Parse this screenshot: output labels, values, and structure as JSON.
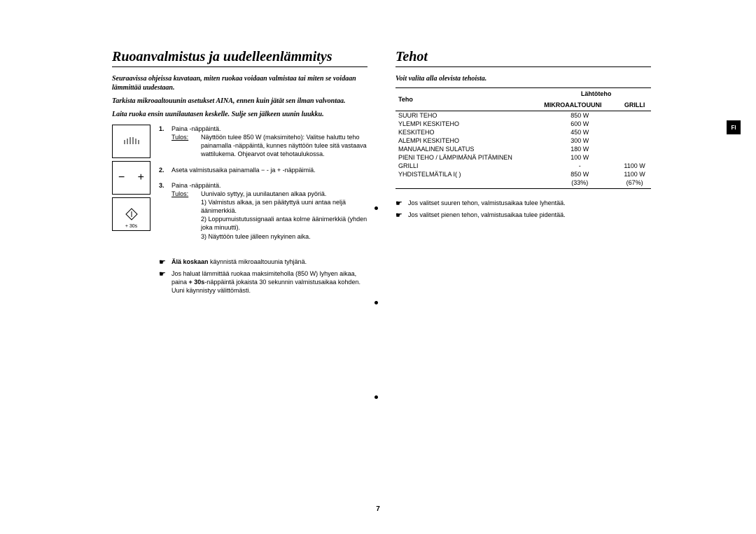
{
  "page_number": "7",
  "sidebar_label": "FI",
  "left": {
    "title": "Ruoanvalmistus ja uudelleenlämmitys",
    "intro_lines": [
      "Seuraavissa ohjeissa kuvataan, miten ruokaa voidaan valmistaa tai miten se voidaan lämmittää uudestaan.",
      "Tarkista mikroaaltouunin asetukset AINA, ennen kuin jätät sen ilman valvontaa.",
      "Laita ruoka ensin uunilautasen keskelle. Sulje sen jälkeen uunin luukku."
    ],
    "icon_start_label": "+ 30s",
    "steps": [
      {
        "num": "1.",
        "lead": "Paina      -näppäintä.",
        "result_label": "Tulos:",
        "result_text": "Näyttöön tulee 850 W (maksimiteho): Valitse haluttu teho painamalla      -näppäintä, kunnes näyttöön tulee sitä vastaava wattilukema. Ohjearvot ovat tehotaulukossa."
      },
      {
        "num": "2.",
        "lead": "Aseta valmistusaika painamalla  −  - ja  +  -näppäimiä."
      },
      {
        "num": "3.",
        "lead": "Paina      -näppäintä.",
        "result_label": "Tulos:",
        "result_text": "Uunivalo syttyy, ja uunilautanen alkaa pyöriä.\n1) Valmistus alkaa, ja sen päätyttyä uuni antaa neljä äänimerkkiä.\n2) Loppumuistutussignaali antaa kolme äänimerkkiä (yhden joka minuutti).\n3) Näyttöön tulee jälleen nykyinen aika."
      }
    ],
    "notes": [
      {
        "mark": "☛",
        "bold": "Älä koskaan",
        "rest": " käynnistä mikroaaltouunia tyhjänä."
      },
      {
        "mark": "☛",
        "rest": "Jos haluat lämmittää ruokaa maksimiteholla (850 W) lyhyen aikaa, paina + 30s-näppäintä jokaista 30 sekunnin valmistusaikaa kohden. Uuni käynnistyy välittömästi.",
        "bold_inline": "+ 30s"
      }
    ]
  },
  "right": {
    "title": "Tehot",
    "subtitle": "Voit valita alla olevista tehoista.",
    "table": {
      "header_power": "Teho",
      "header_output": "Lähtöteho",
      "header_micro": "MIKROAALTOUUNI",
      "header_grill": "GRILLI",
      "rows": [
        {
          "label": "SUURI TEHO",
          "micro": "850 W",
          "grill": ""
        },
        {
          "label": "YLEMPI KESKITEHO",
          "micro": "600 W",
          "grill": ""
        },
        {
          "label": "KESKITEHO",
          "micro": "450 W",
          "grill": ""
        },
        {
          "label": "ALEMPI KESKITEHO",
          "micro": "300 W",
          "grill": ""
        },
        {
          "label": "MANUAALINEN SULATUS",
          "micro": "180 W",
          "grill": ""
        },
        {
          "label": "PIENI TEHO / LÄMPIMÄNÄ PITÄMINEN",
          "micro": "100 W",
          "grill": ""
        },
        {
          "label": "GRILLI",
          "micro": "-",
          "grill": "1100 W"
        },
        {
          "label": "YHDISTELMÄTILA I(      )",
          "micro": "850 W",
          "grill": "1100 W"
        },
        {
          "label": "",
          "micro": "(33%)",
          "grill": "(67%)"
        }
      ]
    },
    "notes": [
      {
        "mark": "☛",
        "text": "Jos valitset suuren tehon, valmistusaikaa tulee lyhentää."
      },
      {
        "mark": "☛",
        "text": "Jos valitset pienen tehon, valmistusaikaa tulee pidentää."
      }
    ]
  }
}
